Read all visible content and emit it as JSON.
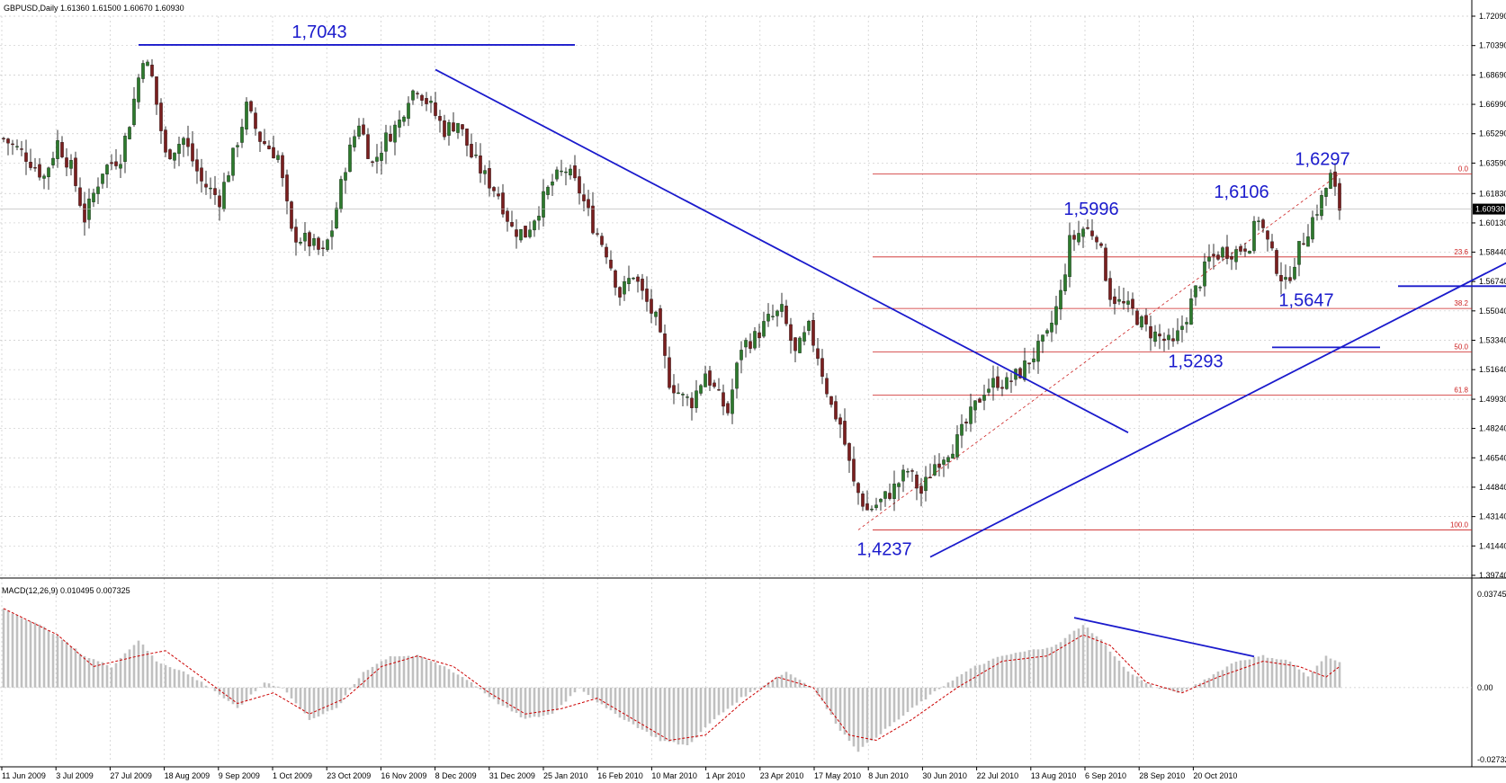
{
  "header": {
    "symbol_line": "GBPUSD,Daily  1.61360 1.61500 1.60670 1.60930"
  },
  "macd": {
    "header": "MACD(12,26,9) 0.010495 0.007325",
    "axis_labels": [
      "0.037451",
      "0.00",
      "-0.02732"
    ],
    "axis_values": [
      0.037451,
      0.0,
      -0.02732
    ]
  },
  "colors": {
    "bull": "#2d7a2d",
    "bear": "#7a1f1f",
    "annotation": "#1a1acc",
    "fib": "#cc2020",
    "grid": "#c9c9c9",
    "histogram": "#c0c0c0",
    "signal": "#cc0000"
  },
  "current_price_label": "1.60930",
  "chart_data": [
    {
      "type": "candlestick",
      "ylim": [
        1.3974,
        1.7209
      ],
      "y_ticks": [
        "1.72090",
        "1.70390",
        "1.68690",
        "1.66990",
        "1.65290",
        "1.63590",
        "1.61830",
        "1.60130",
        "1.58440",
        "1.56740",
        "1.55040",
        "1.53340",
        "1.51640",
        "1.49930",
        "1.48240",
        "1.46540",
        "1.44840",
        "1.43140",
        "1.41440",
        "1.39740"
      ],
      "y_tick_values": [
        1.7209,
        1.7039,
        1.6869,
        1.6699,
        1.6529,
        1.6359,
        1.6183,
        1.6013,
        1.5844,
        1.5674,
        1.5504,
        1.5334,
        1.5164,
        1.4993,
        1.4824,
        1.4654,
        1.4484,
        1.4314,
        1.4144,
        1.3974
      ],
      "x_ticks": [
        "11 Jun 2009",
        "3 Jul 2009",
        "27 Jul 2009",
        "18 Aug 2009",
        "9 Sep 2009",
        "1 Oct 2009",
        "23 Oct 2009",
        "16 Nov 2009",
        "8 Dec 2009",
        "31 Dec 2009",
        "25 Jan 2010",
        "16 Feb 2010",
        "10 Mar 2010",
        "1 Apr 2010",
        "23 Apr 2010",
        "17 May 2010",
        "8 Jun 2010",
        "30 Jun 2010",
        "22 Jul 2010",
        "13 Aug 2010",
        "6 Sep 2010",
        "28 Sep 2010",
        "20 Oct 2010"
      ],
      "close_path": [
        [
          0,
          1.65
        ],
        [
          5,
          1.64
        ],
        [
          9,
          1.628
        ],
        [
          12,
          1.648
        ],
        [
          15,
          1.633
        ],
        [
          18,
          1.604
        ],
        [
          22,
          1.632
        ],
        [
          26,
          1.64
        ],
        [
          28,
          1.66
        ],
        [
          31,
          1.698
        ],
        [
          33,
          1.685
        ],
        [
          36,
          1.64
        ],
        [
          40,
          1.65
        ],
        [
          44,
          1.625
        ],
        [
          48,
          1.615
        ],
        [
          51,
          1.64
        ],
        [
          54,
          1.668
        ],
        [
          57,
          1.65
        ],
        [
          61,
          1.64
        ],
        [
          64,
          1.595
        ],
        [
          68,
          1.59
        ],
        [
          71,
          1.583
        ],
        [
          73,
          1.598
        ],
        [
          76,
          1.635
        ],
        [
          79,
          1.66
        ],
        [
          82,
          1.635
        ],
        [
          85,
          1.65
        ],
        [
          88,
          1.66
        ],
        [
          90,
          1.675
        ],
        [
          92,
          1.68
        ],
        [
          95,
          1.668
        ],
        [
          98,
          1.655
        ],
        [
          101,
          1.66
        ],
        [
          104,
          1.64
        ],
        [
          107,
          1.628
        ],
        [
          110,
          1.618
        ],
        [
          113,
          1.598
        ],
        [
          116,
          1.595
        ],
        [
          119,
          1.61
        ],
        [
          122,
          1.625
        ],
        [
          125,
          1.632
        ],
        [
          128,
          1.62
        ],
        [
          131,
          1.6
        ],
        [
          134,
          1.585
        ],
        [
          137,
          1.56
        ],
        [
          140,
          1.572
        ],
        [
          142,
          1.56
        ],
        [
          145,
          1.545
        ],
        [
          148,
          1.51
        ],
        [
          151,
          1.5
        ],
        [
          153,
          1.498
        ],
        [
          156,
          1.515
        ],
        [
          159,
          1.5
        ],
        [
          161,
          1.492
        ],
        [
          164,
          1.53
        ],
        [
          167,
          1.535
        ],
        [
          170,
          1.545
        ],
        [
          173,
          1.55
        ],
        [
          176,
          1.525
        ],
        [
          179,
          1.54
        ],
        [
          181,
          1.525
        ],
        [
          184,
          1.495
        ],
        [
          186,
          1.485
        ],
        [
          189,
          1.45
        ],
        [
          192,
          1.435
        ],
        [
          195,
          1.44
        ],
        [
          198,
          1.448
        ],
        [
          201,
          1.458
        ],
        [
          204,
          1.445
        ],
        [
          207,
          1.462
        ],
        [
          210,
          1.47
        ],
        [
          212,
          1.475
        ],
        [
          215,
          1.49
        ],
        [
          218,
          1.505
        ],
        [
          221,
          1.51
        ],
        [
          223,
          1.508
        ],
        [
          226,
          1.515
        ],
        [
          229,
          1.525
        ],
        [
          232,
          1.535
        ],
        [
          235,
          1.56
        ],
        [
          237,
          1.59
        ],
        [
          240,
          1.598
        ],
        [
          243,
          1.595
        ],
        [
          246,
          1.56
        ],
        [
          248,
          1.555
        ],
        [
          251,
          1.55
        ],
        [
          254,
          1.54
        ],
        [
          257,
          1.535
        ],
        [
          260,
          1.53
        ],
        [
          263,
          1.548
        ],
        [
          265,
          1.562
        ],
        [
          268,
          1.58
        ],
        [
          271,
          1.585
        ],
        [
          274,
          1.585
        ],
        [
          277,
          1.59
        ],
        [
          279,
          1.605
        ],
        [
          282,
          1.582
        ],
        [
          285,
          1.565
        ],
        [
          287,
          1.58
        ],
        [
          290,
          1.598
        ],
        [
          293,
          1.615
        ],
        [
          295,
          1.628
        ],
        [
          297,
          1.61
        ]
      ],
      "total_bars": 298,
      "annotations": [
        {
          "label": "1,7043",
          "value": 1.7043
        },
        {
          "label": "1,6297",
          "value": 1.6297
        },
        {
          "label": "1,6106",
          "value": 1.6106
        },
        {
          "label": "1,5996",
          "value": 1.5996
        },
        {
          "label": "1,5647",
          "value": 1.5647
        },
        {
          "label": "1,5293",
          "value": 1.5293
        },
        {
          "label": "1,4237",
          "value": 1.4237
        }
      ],
      "fibonacci": [
        {
          "level": "0.0",
          "value": 1.6297
        },
        {
          "level": "23.6",
          "value": 1.5816
        },
        {
          "level": "38.2",
          "value": 1.5518
        },
        {
          "level": "50.0",
          "value": 1.5267
        },
        {
          "level": "61.8",
          "value": 1.5016
        },
        {
          "level": "100.0",
          "value": 1.4237
        }
      ]
    },
    {
      "type": "bar",
      "name": "MACD",
      "ylim": [
        -0.02732,
        0.037451
      ],
      "hist_path": [
        [
          0,
          0.03
        ],
        [
          10,
          0.022
        ],
        [
          18,
          0.012
        ],
        [
          24,
          0.008
        ],
        [
          30,
          0.018
        ],
        [
          34,
          0.01
        ],
        [
          40,
          0.006
        ],
        [
          46,
          0.0
        ],
        [
          52,
          -0.008
        ],
        [
          58,
          0.002
        ],
        [
          62,
          0.0
        ],
        [
          68,
          -0.012
        ],
        [
          74,
          -0.008
        ],
        [
          80,
          0.006
        ],
        [
          86,
          0.012
        ],
        [
          92,
          0.012
        ],
        [
          98,
          0.008
        ],
        [
          104,
          0.002
        ],
        [
          110,
          -0.006
        ],
        [
          116,
          -0.012
        ],
        [
          122,
          -0.01
        ],
        [
          128,
          0.0
        ],
        [
          134,
          -0.008
        ],
        [
          140,
          -0.014
        ],
        [
          146,
          -0.02
        ],
        [
          152,
          -0.022
        ],
        [
          158,
          -0.012
        ],
        [
          164,
          -0.004
        ],
        [
          170,
          0.002
        ],
        [
          174,
          0.006
        ],
        [
          180,
          0.0
        ],
        [
          186,
          -0.016
        ],
        [
          190,
          -0.024
        ],
        [
          196,
          -0.016
        ],
        [
          202,
          -0.008
        ],
        [
          210,
          0.002
        ],
        [
          216,
          0.008
        ],
        [
          222,
          0.012
        ],
        [
          228,
          0.014
        ],
        [
          234,
          0.016
        ],
        [
          240,
          0.024
        ],
        [
          244,
          0.018
        ],
        [
          250,
          0.006
        ],
        [
          256,
          0.0
        ],
        [
          262,
          -0.002
        ],
        [
          268,
          0.004
        ],
        [
          274,
          0.01
        ],
        [
          280,
          0.012
        ],
        [
          286,
          0.01
        ],
        [
          290,
          0.004
        ],
        [
          294,
          0.012
        ],
        [
          297,
          0.01
        ]
      ],
      "signal_path": [
        [
          0,
          0.03
        ],
        [
          12,
          0.02
        ],
        [
          20,
          0.008
        ],
        [
          30,
          0.012
        ],
        [
          36,
          0.014
        ],
        [
          44,
          0.004
        ],
        [
          52,
          -0.006
        ],
        [
          60,
          -0.002
        ],
        [
          68,
          -0.01
        ],
        [
          76,
          -0.004
        ],
        [
          84,
          0.008
        ],
        [
          92,
          0.012
        ],
        [
          100,
          0.008
        ],
        [
          108,
          -0.002
        ],
        [
          116,
          -0.01
        ],
        [
          124,
          -0.008
        ],
        [
          132,
          -0.004
        ],
        [
          140,
          -0.012
        ],
        [
          148,
          -0.02
        ],
        [
          156,
          -0.018
        ],
        [
          164,
          -0.006
        ],
        [
          172,
          0.004
        ],
        [
          180,
          0.0
        ],
        [
          188,
          -0.018
        ],
        [
          194,
          -0.02
        ],
        [
          202,
          -0.012
        ],
        [
          212,
          0.0
        ],
        [
          222,
          0.01
        ],
        [
          232,
          0.012
        ],
        [
          240,
          0.02
        ],
        [
          246,
          0.016
        ],
        [
          254,
          0.002
        ],
        [
          262,
          -0.002
        ],
        [
          270,
          0.004
        ],
        [
          280,
          0.01
        ],
        [
          288,
          0.008
        ],
        [
          294,
          0.004
        ],
        [
          297,
          0.008
        ]
      ]
    }
  ]
}
